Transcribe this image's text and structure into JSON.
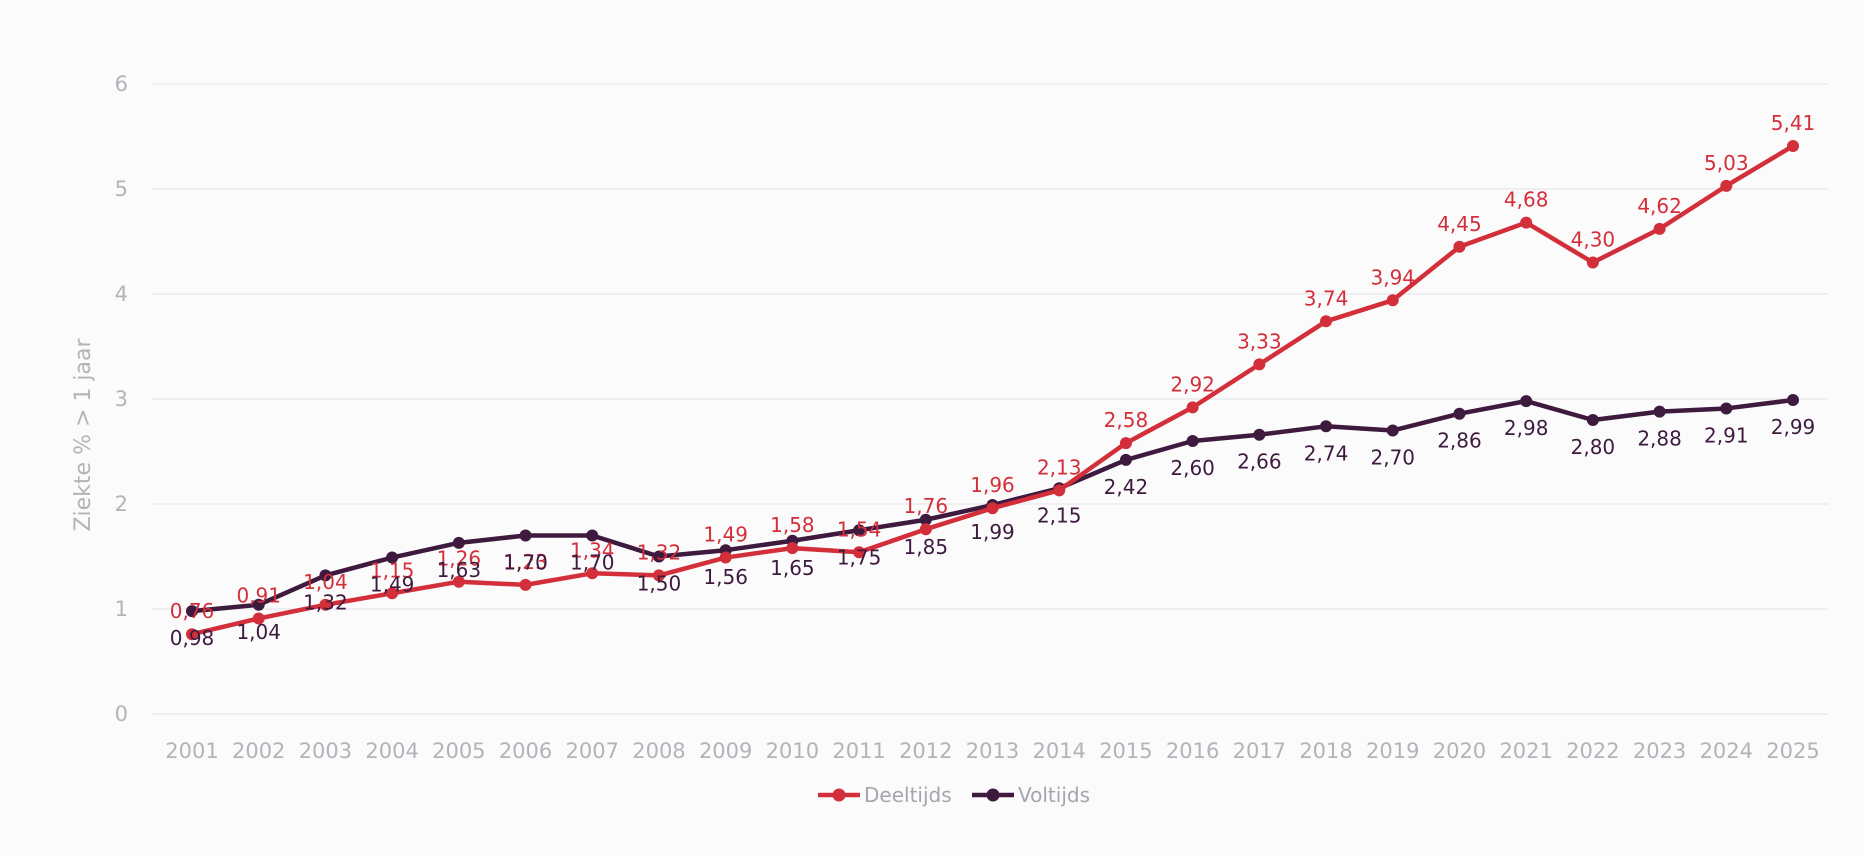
{
  "chart_data": {
    "type": "line",
    "title": "",
    "xlabel": "",
    "ylabel": "Ziekte % > 1 jaar",
    "ylim": [
      0,
      6
    ],
    "yticks": [
      "0",
      "1",
      "2",
      "3",
      "4",
      "5",
      "6"
    ],
    "grid": true,
    "legend_position": "bottom-center",
    "categories": [
      "2001",
      "2002",
      "2003",
      "2004",
      "2005",
      "2006",
      "2007",
      "2008",
      "2009",
      "2010",
      "2011",
      "2012",
      "2013",
      "2014",
      "2015",
      "2016",
      "2017",
      "2018",
      "2019",
      "2020",
      "2021",
      "2022",
      "2023",
      "2024",
      "2025"
    ],
    "series": [
      {
        "name": "Deeltijds",
        "color": "#d32f3a",
        "label_position": "above",
        "values": [
          0.76,
          0.91,
          1.04,
          1.15,
          1.26,
          1.23,
          1.34,
          1.32,
          1.49,
          1.58,
          1.54,
          1.76,
          1.96,
          2.13,
          2.58,
          2.92,
          3.33,
          3.74,
          3.94,
          4.45,
          4.68,
          4.3,
          4.62,
          5.03,
          5.41
        ],
        "labels": [
          "0,76",
          "0,91",
          "1,04",
          "1,15",
          "1,26",
          "1,23",
          "1,34",
          "1,32",
          "1,49",
          "1,58",
          "1,54",
          "1,76",
          "1,96",
          "2,13",
          "2,58",
          "2,92",
          "3,33",
          "3,74",
          "3,94",
          "4,45",
          "4,68",
          "4,30",
          "4,62",
          "5,03",
          "5,41"
        ]
      },
      {
        "name": "Voltijds",
        "color": "#3e1a3f",
        "label_position": "below",
        "values": [
          0.98,
          1.04,
          1.32,
          1.49,
          1.63,
          1.7,
          1.7,
          1.5,
          1.56,
          1.65,
          1.75,
          1.85,
          1.99,
          2.15,
          2.42,
          2.6,
          2.66,
          2.74,
          2.7,
          2.86,
          2.98,
          2.8,
          2.88,
          2.91,
          2.99
        ],
        "labels": [
          "0,98",
          "1,04",
          "1,32",
          "1,49",
          "1,63",
          "1,70",
          "1,70",
          "1,50",
          "1,56",
          "1,65",
          "1,75",
          "1,85",
          "1,99",
          "2,15",
          "2,42",
          "2,60",
          "2,66",
          "2,74",
          "2,70",
          "2,86",
          "2,98",
          "2,80",
          "2,88",
          "2,91",
          "2,99"
        ]
      }
    ]
  }
}
